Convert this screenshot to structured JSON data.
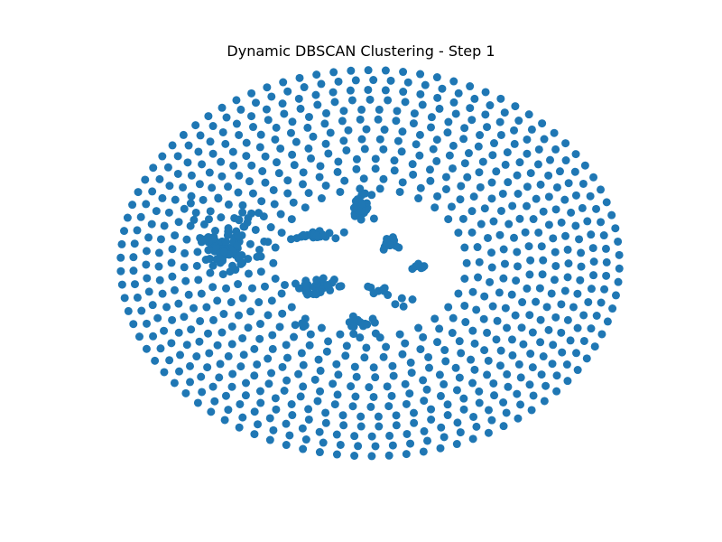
{
  "figure": {
    "title": "Dynamic DBSCAN Clustering - Step 1"
  },
  "chart_data": {
    "type": "scatter",
    "title": "Dynamic DBSCAN Clustering - Step 1",
    "xlabel": "",
    "ylabel": "",
    "axes_visible": false,
    "grid": false,
    "legend": "none",
    "xlim": [
      0,
      1
    ],
    "ylim": [
      0,
      1
    ],
    "marker_color": "#1f77b4",
    "outer_ring": {
      "center": [
        0.5,
        0.52
      ],
      "ring_count": 13,
      "outer_radius": [
        0.49,
        0.49
      ],
      "inner_radius": [
        0.19,
        0.19
      ]
    },
    "left_dense_cluster": {
      "center": [
        0.22,
        0.57
      ],
      "count": 70,
      "spread": [
        0.07,
        0.07
      ]
    },
    "inner_clusters": [
      {
        "center": [
          0.39,
          0.59
        ],
        "count": 28,
        "spread": [
          0.04,
          0.01
        ]
      },
      {
        "center": [
          0.48,
          0.66
        ],
        "count": 24,
        "spread": [
          0.02,
          0.03
        ]
      },
      {
        "center": [
          0.54,
          0.57
        ],
        "count": 14,
        "spread": [
          0.015,
          0.02
        ]
      },
      {
        "center": [
          0.4,
          0.46
        ],
        "count": 30,
        "spread": [
          0.05,
          0.02
        ]
      },
      {
        "center": [
          0.52,
          0.45
        ],
        "count": 8,
        "spread": [
          0.02,
          0.015
        ]
      },
      {
        "center": [
          0.48,
          0.37
        ],
        "count": 14,
        "spread": [
          0.03,
          0.02
        ]
      },
      {
        "center": [
          0.6,
          0.51
        ],
        "count": 6,
        "spread": [
          0.015,
          0.01
        ]
      },
      {
        "center": [
          0.57,
          0.42
        ],
        "count": 4,
        "spread": [
          0.015,
          0.01
        ]
      },
      {
        "center": [
          0.37,
          0.36
        ],
        "count": 3,
        "spread": [
          0.01,
          0.005
        ]
      }
    ]
  }
}
